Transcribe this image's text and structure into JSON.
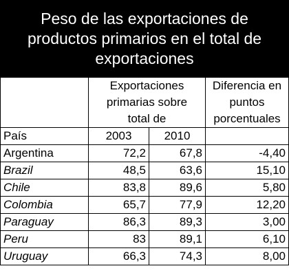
{
  "title": {
    "line1": "Peso de las exportaciones de",
    "line2": "productos primarios en el total de",
    "line3": "exportaciones"
  },
  "headers": {
    "col2_line1": "Exportaciones",
    "col2_line2": "primarias sobre",
    "col2_line3": "total de",
    "col4_line1": "Diferencia en",
    "col4_line2": "puntos",
    "col4_line3": "porcentuales",
    "country": "País",
    "year1": "2003",
    "year2": "2010"
  },
  "rows": [
    {
      "country": "Argentina",
      "italic": false,
      "v2003": "72,2",
      "v2010": "67,8",
      "diff": "-4,40"
    },
    {
      "country": "Brazil",
      "italic": true,
      "v2003": "48,5",
      "v2010": "63,6",
      "diff": "15,10"
    },
    {
      "country": "Chile",
      "italic": true,
      "v2003": "83,8",
      "v2010": "89,6",
      "diff": "5,80"
    },
    {
      "country": "Colombia",
      "italic": true,
      "v2003": "65,7",
      "v2010": "77,9",
      "diff": "12,20"
    },
    {
      "country": "Paraguay",
      "italic": true,
      "v2003": "86,3",
      "v2010": "89,3",
      "diff": "3,00"
    },
    {
      "country": "Peru",
      "italic": true,
      "v2003": "83",
      "v2010": "89,1",
      "diff": "6,10"
    },
    {
      "country": "Uruguay",
      "italic": true,
      "v2003": "66,3",
      "v2010": "74,3",
      "diff": "8,00"
    }
  ]
}
